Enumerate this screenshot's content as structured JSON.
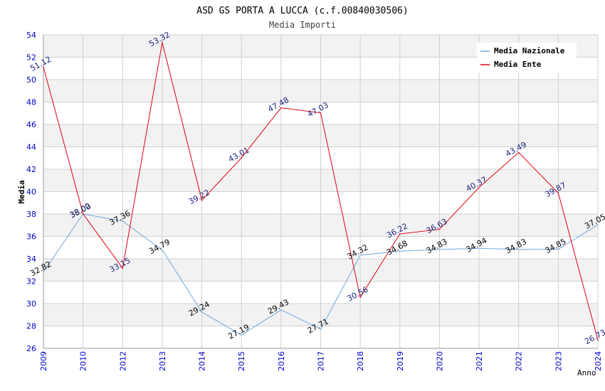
{
  "chart_data": {
    "type": "line",
    "title": "ASD GS PORTA A LUCCA (c.f.00840030506)",
    "subtitle": "Media Importi",
    "xlabel": "Anno",
    "ylabel": "Media",
    "ylim": [
      26,
      54
    ],
    "ytick_step": 2,
    "grid": true,
    "legend_position": "top-right",
    "categories": [
      "2009",
      "2010",
      "2012",
      "2013",
      "2014",
      "2015",
      "2016",
      "2017",
      "2018",
      "2019",
      "2020",
      "2021",
      "2022",
      "2023",
      "2024"
    ],
    "series": [
      {
        "name": "Media Nazionale",
        "color": "#6fa8dc",
        "label_color": "#000000",
        "values": [
          32.82,
          38.0,
          37.36,
          34.79,
          29.24,
          27.19,
          29.43,
          27.71,
          34.32,
          34.68,
          34.83,
          34.94,
          34.83,
          34.85,
          37.05
        ],
        "labels": [
          "32.82",
          "38.00",
          "37.36",
          "34.79",
          "29.24",
          "27.19",
          "29.43",
          "27.71",
          "34.32",
          "34.68",
          "34.83",
          "34.94",
          "34.83",
          "34.85",
          "37.05"
        ]
      },
      {
        "name": "Media Ente",
        "color": "#e0000f",
        "label_color": "#1a237e",
        "values": [
          51.12,
          38.02,
          33.15,
          53.32,
          39.22,
          43.01,
          47.48,
          47.03,
          30.56,
          36.22,
          36.63,
          40.37,
          43.49,
          39.87,
          26.73
        ],
        "labels": [
          "51.12",
          "38.02",
          "33.15",
          "53.32",
          "39.22",
          "43.01",
          "47.48",
          "47.03",
          "30.56",
          "36.22",
          "36.63",
          "40.37",
          "43.49",
          "39.87",
          "26.73"
        ]
      }
    ],
    "colors": {
      "axis_tick_text": "#0000cc",
      "band": "#f2f2f2",
      "grid": "#d0d0d0",
      "axis": "#999999"
    }
  }
}
